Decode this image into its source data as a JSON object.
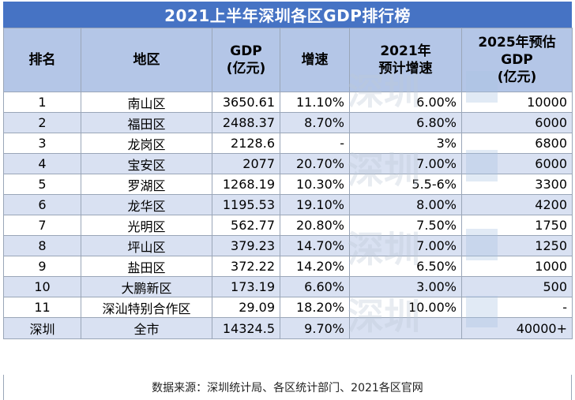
{
  "title": "2021上半年深圳各区GDP排行榜",
  "headers": {
    "rank": "排名",
    "region": "地区",
    "gdp_line1": "GDP",
    "gdp_line2": "(亿元)",
    "growth": "增速",
    "g2021_line1": "2021年",
    "g2021_line2": "预计增速",
    "g2025_line1": "2025年预估",
    "g2025_line2": "GDP",
    "g2025_line3": "(亿元)"
  },
  "rows": [
    {
      "rank": "1",
      "region": "南山区",
      "gdp": "3650.61",
      "growth": "11.10%",
      "g2021": "6.00%",
      "g2025": "10000"
    },
    {
      "rank": "2",
      "region": "福田区",
      "gdp": "2488.37",
      "growth": "8.70%",
      "g2021": "6.80%",
      "g2025": "6000"
    },
    {
      "rank": "3",
      "region": "龙岗区",
      "gdp": "2128.6",
      "growth": "-",
      "g2021": "3%",
      "g2025": "6800"
    },
    {
      "rank": "4",
      "region": "宝安区",
      "gdp": "2077",
      "growth": "20.70%",
      "g2021": "7.00%",
      "g2025": "6000"
    },
    {
      "rank": "5",
      "region": "罗湖区",
      "gdp": "1268.19",
      "growth": "10.30%",
      "g2021": "5.5-6%",
      "g2025": "3300"
    },
    {
      "rank": "6",
      "region": "龙华区",
      "gdp": "1195.53",
      "growth": "19.10%",
      "g2021": "8.00%",
      "g2025": "4200"
    },
    {
      "rank": "7",
      "region": "光明区",
      "gdp": "562.77",
      "growth": "20.80%",
      "g2021": "7.50%",
      "g2025": "1750"
    },
    {
      "rank": "8",
      "region": "坪山区",
      "gdp": "379.23",
      "growth": "14.70%",
      "g2021": "7.00%",
      "g2025": "1250"
    },
    {
      "rank": "9",
      "region": "盐田区",
      "gdp": "372.22",
      "growth": "14.20%",
      "g2021": "6.50%",
      "g2025": "1000"
    },
    {
      "rank": "10",
      "region": "大鹏新区",
      "gdp": "173.19",
      "growth": "6.60%",
      "g2021": "3.00%",
      "g2025": "500"
    },
    {
      "rank": "11",
      "region": "深汕特别合作区",
      "gdp": "29.09",
      "growth": "18.20%",
      "g2021": "10.00%",
      "g2025": "-"
    }
  ],
  "total": {
    "rank": "深圳",
    "region": "全市",
    "gdp": "14324.5",
    "growth": "9.70%",
    "g2021": "",
    "g2025": "40000+"
  },
  "footer": "数据来源：深圳统计局、各区统计部门、2021各区官网",
  "watermarks": [
    "深圳",
    "深圳",
    "深圳",
    "深圳"
  ]
}
